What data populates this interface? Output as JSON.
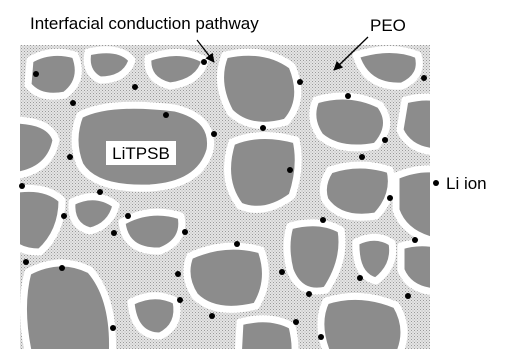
{
  "labels": {
    "pathway": "Interfacial conduction pathway",
    "peo": "PEO",
    "particle": "LiTPSB",
    "ion": "Li ion"
  }
}
